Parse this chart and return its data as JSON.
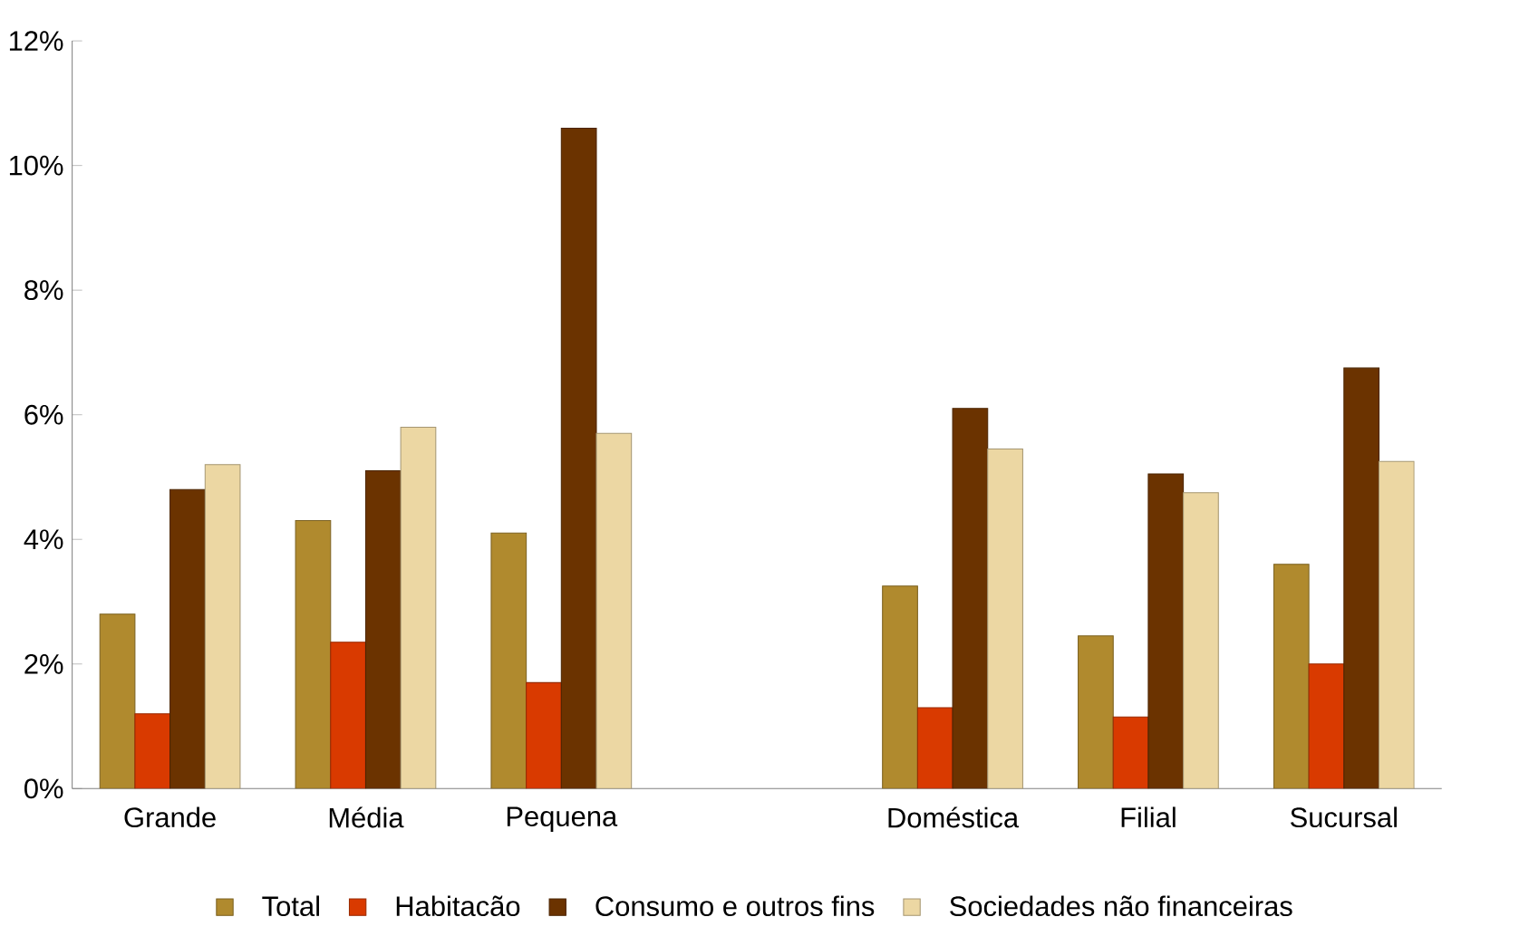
{
  "chart_data": {
    "type": "bar",
    "categories": [
      "Grande",
      "Média",
      "Pequena",
      null,
      "Doméstica",
      "Filial",
      "Sucursal"
    ],
    "series": [
      {
        "name": "Total",
        "color": "#b08a2e",
        "values": [
          2.8,
          4.3,
          4.1,
          null,
          3.25,
          2.45,
          3.6
        ]
      },
      {
        "name": "Habitacão",
        "color": "#d93a00",
        "values": [
          1.2,
          2.35,
          1.7,
          null,
          1.3,
          1.15,
          2.0
        ]
      },
      {
        "name": "Consumo e outros fins",
        "color": "#6b3300",
        "values": [
          4.8,
          5.1,
          10.6,
          null,
          6.1,
          5.05,
          6.75
        ]
      },
      {
        "name": "Sociedades não financeiras",
        "color": "#ecd7a3",
        "values": [
          5.2,
          5.8,
          5.7,
          null,
          5.45,
          4.75,
          5.25
        ]
      }
    ],
    "ylim": [
      0,
      12
    ],
    "yticks": [
      {
        "value": 0,
        "label": "0%"
      },
      {
        "value": 2,
        "label": "2%"
      },
      {
        "value": 4,
        "label": "4%"
      },
      {
        "value": 6,
        "label": "6%"
      },
      {
        "value": 8,
        "label": "8%"
      },
      {
        "value": 10,
        "label": "10%"
      },
      {
        "value": 12,
        "label": "12%"
      }
    ],
    "grid": false,
    "legend": "bottom"
  }
}
